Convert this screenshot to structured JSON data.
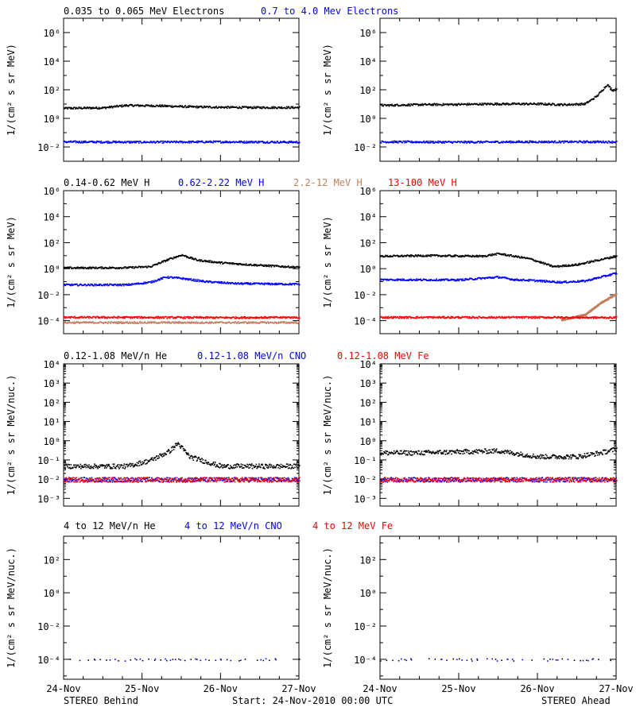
{
  "x_axis": {
    "tick_labels": [
      "24-Nov",
      "25-Nov",
      "26-Nov",
      "27-Nov"
    ],
    "xlim_days": [
      0,
      3
    ]
  },
  "footer": {
    "left": "STEREO Behind",
    "center": "Start: 24-Nov-2010 00:00 UTC",
    "right": "STEREO Ahead"
  },
  "colors": {
    "black": "#000000",
    "blue": "#0000ff",
    "tan": "#c08060",
    "red": "#ff0000"
  },
  "chart_data": [
    {
      "type": "scatter",
      "row": "electrons",
      "legend": [
        {
          "label": "0.035 to 0.065 MeV Electrons",
          "color": "black"
        },
        {
          "label": "0.7 to 4.0 Mev Electrons",
          "color": "blue"
        }
      ],
      "ylabel": "1/(cm² s sr MeV)",
      "ylim_log10": [
        -3,
        7
      ],
      "yticks_log10": [
        -2,
        0,
        2,
        4,
        6
      ],
      "panels": [
        {
          "name": "STEREO Behind",
          "series": [
            {
              "color": "black",
              "points": [
                [
                  0,
                  0.75
                ],
                [
                  0.5,
                  0.78
                ],
                [
                  0.8,
                  0.95
                ],
                [
                  1.2,
                  0.92
                ],
                [
                  1.6,
                  0.85
                ],
                [
                  2.0,
                  0.82
                ],
                [
                  2.4,
                  0.8
                ],
                [
                  3.0,
                  0.8
                ]
              ]
            },
            {
              "color": "blue",
              "points": [
                [
                  0,
                  -1.6
                ],
                [
                  1.0,
                  -1.62
                ],
                [
                  2.0,
                  -1.6
                ],
                [
                  3.0,
                  -1.62
                ]
              ]
            }
          ]
        },
        {
          "name": "STEREO Ahead",
          "series": [
            {
              "color": "black",
              "points": [
                [
                  0,
                  0.95
                ],
                [
                  0.5,
                  1.0
                ],
                [
                  1.0,
                  1.02
                ],
                [
                  1.5,
                  1.05
                ],
                [
                  2.0,
                  1.05
                ],
                [
                  2.35,
                  1.0
                ],
                [
                  2.6,
                  1.05
                ],
                [
                  2.75,
                  1.6
                ],
                [
                  2.88,
                  2.4
                ],
                [
                  2.95,
                  2.0
                ],
                [
                  3.0,
                  2.1
                ]
              ]
            },
            {
              "color": "blue",
              "points": [
                [
                  0,
                  -1.6
                ],
                [
                  1.0,
                  -1.62
                ],
                [
                  2.0,
                  -1.6
                ],
                [
                  3.0,
                  -1.6
                ]
              ]
            }
          ]
        }
      ]
    },
    {
      "type": "scatter",
      "row": "protons",
      "legend": [
        {
          "label": "0.14-0.62 MeV H",
          "color": "black"
        },
        {
          "label": "0.62-2.22 MeV H",
          "color": "blue"
        },
        {
          "label": "2.2-12 MeV H",
          "color": "tan"
        },
        {
          "label": "13-100 MeV H",
          "color": "red"
        }
      ],
      "ylabel": "1/(cm² s sr MeV)",
      "ylim_log10": [
        -5,
        6
      ],
      "yticks_log10": [
        -4,
        -2,
        0,
        2,
        4,
        6
      ],
      "panels": [
        {
          "name": "STEREO Behind",
          "series": [
            {
              "color": "black",
              "points": [
                [
                  0,
                  0.1
                ],
                [
                  0.8,
                  0.12
                ],
                [
                  1.1,
                  0.2
                ],
                [
                  1.35,
                  0.8
                ],
                [
                  1.5,
                  1.1
                ],
                [
                  1.7,
                  0.7
                ],
                [
                  2.0,
                  0.5
                ],
                [
                  2.5,
                  0.3
                ],
                [
                  3.0,
                  0.15
                ]
              ]
            },
            {
              "color": "blue",
              "points": [
                [
                  0,
                  -1.2
                ],
                [
                  0.8,
                  -1.2
                ],
                [
                  1.1,
                  -1.0
                ],
                [
                  1.3,
                  -0.6
                ],
                [
                  1.5,
                  -0.7
                ],
                [
                  1.8,
                  -0.95
                ],
                [
                  2.2,
                  -1.1
                ],
                [
                  3.0,
                  -1.15
                ]
              ]
            },
            {
              "color": "red",
              "points": [
                [
                  0,
                  -3.7
                ],
                [
                  1.0,
                  -3.7
                ],
                [
                  2.0,
                  -3.72
                ],
                [
                  3.0,
                  -3.7
                ]
              ]
            },
            {
              "color": "tan",
              "points": [
                [
                  0,
                  -4.1
                ],
                [
                  1.0,
                  -4.1
                ],
                [
                  2.0,
                  -4.1
                ],
                [
                  3.0,
                  -4.1
                ]
              ]
            }
          ]
        },
        {
          "name": "STEREO Ahead",
          "series": [
            {
              "color": "black",
              "points": [
                [
                  0,
                  1.0
                ],
                [
                  0.6,
                  1.05
                ],
                [
                  1.3,
                  1.0
                ],
                [
                  1.5,
                  1.2
                ],
                [
                  1.7,
                  1.0
                ],
                [
                  1.9,
                  0.8
                ],
                [
                  2.2,
                  0.2
                ],
                [
                  2.5,
                  0.35
                ],
                [
                  2.8,
                  0.75
                ],
                [
                  3.0,
                  1.0
                ]
              ]
            },
            {
              "color": "blue",
              "points": [
                [
                  0,
                  -0.8
                ],
                [
                  1.0,
                  -0.82
                ],
                [
                  1.5,
                  -0.6
                ],
                [
                  1.7,
                  -0.8
                ],
                [
                  1.9,
                  -0.85
                ],
                [
                  2.3,
                  -1.0
                ],
                [
                  2.6,
                  -0.9
                ],
                [
                  2.8,
                  -0.6
                ],
                [
                  3.0,
                  -0.3
                ]
              ]
            },
            {
              "color": "tan",
              "points": [
                [
                  2.3,
                  -3.9
                ],
                [
                  2.6,
                  -3.5
                ],
                [
                  2.8,
                  -2.6
                ],
                [
                  3.0,
                  -1.9
                ]
              ]
            },
            {
              "color": "red",
              "points": [
                [
                  0,
                  -3.7
                ],
                [
                  1.0,
                  -3.7
                ],
                [
                  2.0,
                  -3.7
                ],
                [
                  3.0,
                  -3.72
                ]
              ]
            }
          ]
        }
      ]
    },
    {
      "type": "scatter",
      "row": "heavy-low",
      "legend": [
        {
          "label": "0.12-1.08 MeV/n He",
          "color": "black"
        },
        {
          "label": "0.12-1.08 MeV/n CNO",
          "color": "blue"
        },
        {
          "label": "0.12-1.08 MeV Fe",
          "color": "red"
        }
      ],
      "ylabel": "1/(cm² s sr MeV/nuc.)",
      "ylim_log10": [
        -3.4,
        4
      ],
      "yticks_log10": [
        -3,
        -2,
        -1,
        0,
        1,
        2,
        3,
        4
      ],
      "panels": [
        {
          "name": "STEREO Behind",
          "series": [
            {
              "color": "black",
              "points": [
                [
                  0,
                  -1.3
                ],
                [
                  0.8,
                  -1.3
                ],
                [
                  1.1,
                  -1.0
                ],
                [
                  1.35,
                  -0.5
                ],
                [
                  1.45,
                  -0.1
                ],
                [
                  1.6,
                  -0.8
                ],
                [
                  2.0,
                  -1.3
                ],
                [
                  3.0,
                  -1.3
                ]
              ]
            },
            {
              "color": "blue",
              "points": [
                [
                  0,
                  -2.0
                ],
                [
                  1.0,
                  -2.0
                ],
                [
                  2.0,
                  -2.0
                ],
                [
                  3.0,
                  -2.0
                ]
              ]
            },
            {
              "color": "red",
              "points": [
                [
                  0,
                  -2.0
                ],
                [
                  1.0,
                  -2.0
                ],
                [
                  2.0,
                  -2.0
                ],
                [
                  3.0,
                  -2.0
                ]
              ]
            }
          ]
        },
        {
          "name": "STEREO Ahead",
          "series": [
            {
              "color": "black",
              "points": [
                [
                  0,
                  -0.6
                ],
                [
                  0.5,
                  -0.6
                ],
                [
                  1.0,
                  -0.55
                ],
                [
                  1.5,
                  -0.5
                ],
                [
                  2.0,
                  -0.8
                ],
                [
                  2.5,
                  -0.8
                ],
                [
                  2.8,
                  -0.6
                ],
                [
                  3.0,
                  -0.4
                ]
              ]
            },
            {
              "color": "blue",
              "points": [
                [
                  0,
                  -2.0
                ],
                [
                  1.0,
                  -2.0
                ],
                [
                  2.0,
                  -2.0
                ],
                [
                  3.0,
                  -2.0
                ]
              ]
            },
            {
              "color": "red",
              "points": [
                [
                  0,
                  -2.0
                ],
                [
                  1.0,
                  -2.0
                ],
                [
                  2.0,
                  -2.0
                ],
                [
                  3.0,
                  -2.0
                ]
              ]
            }
          ]
        }
      ]
    },
    {
      "type": "scatter",
      "row": "heavy-high",
      "legend": [
        {
          "label": "4 to 12 MeV/n He",
          "color": "black"
        },
        {
          "label": "4 to 12 MeV/n CNO",
          "color": "blue"
        },
        {
          "label": "4 to 12 MeV Fe",
          "color": "red"
        }
      ],
      "ylabel": "1/(cm² s sr MeV/nuc.)",
      "ylim_log10": [
        -5.2,
        3.4
      ],
      "yticks_log10": [
        -4,
        -2,
        0,
        2
      ],
      "panels": [
        {
          "name": "STEREO Behind",
          "series": [
            {
              "color": "black",
              "points": [
                [
                  0,
                  -4.0
                ],
                [
                  1.0,
                  -4.0
                ],
                [
                  2.0,
                  -4.0
                ],
                [
                  3.0,
                  -4.0
                ]
              ]
            },
            {
              "color": "blue",
              "points": [
                [
                  0.2,
                  -4.0
                ],
                [
                  1.0,
                  -4.0
                ],
                [
                  2.0,
                  -4.0
                ],
                [
                  2.7,
                  -4.0
                ]
              ]
            }
          ]
        },
        {
          "name": "STEREO Ahead",
          "series": [
            {
              "color": "black",
              "points": [
                [
                  0,
                  -4.0
                ],
                [
                  1.0,
                  -4.0
                ],
                [
                  2.0,
                  -4.0
                ],
                [
                  3.0,
                  -4.0
                ]
              ]
            },
            {
              "color": "blue",
              "points": [
                [
                  0.2,
                  -4.0
                ],
                [
                  1.0,
                  -4.0
                ],
                [
                  2.0,
                  -4.0
                ],
                [
                  2.7,
                  -4.0
                ]
              ]
            }
          ]
        }
      ]
    }
  ]
}
